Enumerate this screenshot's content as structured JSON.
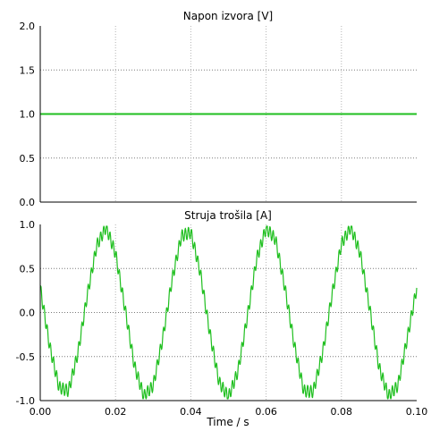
{
  "chart_data": [
    {
      "type": "line",
      "title": "Napon izvora [V]",
      "xlabel": "",
      "ylabel": "",
      "xlim": [
        0.0,
        0.1
      ],
      "ylim": [
        0.0,
        2.0
      ],
      "x_ticks": [
        0.0,
        0.02,
        0.04,
        0.06,
        0.08,
        0.1
      ],
      "y_ticks": [
        "0.0",
        "0.5",
        "1.0",
        "1.5",
        "2.0"
      ],
      "grid": "dotted",
      "color": "#1fbf1f",
      "series": [
        {
          "x": [
            0.0,
            0.1
          ],
          "y": [
            1.0,
            1.0
          ]
        }
      ]
    },
    {
      "type": "line",
      "title": "Struja trošila [A]",
      "xlabel": "Time / s",
      "ylabel": "",
      "xlim": [
        0.0,
        0.1
      ],
      "ylim": [
        -1.0,
        1.0
      ],
      "x_ticks": [
        "0.00",
        "0.02",
        "0.04",
        "0.06",
        "0.08",
        "0.10"
      ],
      "y_ticks": [
        "-1.0",
        "-0.5",
        "0.0",
        "0.5",
        "1.0"
      ],
      "grid": "dotted",
      "color": "#1fbf1f",
      "series": [
        {
          "x": [
            0.0,
            0.0025,
            0.005,
            0.0075,
            0.01,
            0.0125,
            0.015,
            0.0175,
            0.02,
            0.0225,
            0.025,
            0.0275,
            0.03,
            0.0325,
            0.035,
            0.0375,
            0.04,
            0.0425,
            0.045,
            0.0475,
            0.05,
            0.0525,
            0.055,
            0.0575,
            0.06,
            0.0625,
            0.065,
            0.0675,
            0.07,
            0.0725,
            0.075,
            0.0775,
            0.08,
            0.0825,
            0.085,
            0.0875,
            0.09,
            0.0925,
            0.095,
            0.0975,
            0.1
          ],
          "y": [
            0.28,
            -0.38,
            -0.85,
            -0.89,
            -0.46,
            0.2,
            0.76,
            0.97,
            0.67,
            0.05,
            -0.6,
            -0.95,
            -0.83,
            -0.3,
            0.37,
            0.87,
            0.91,
            0.46,
            -0.22,
            -0.79,
            -0.96,
            -0.67,
            -0.05,
            0.61,
            0.96,
            0.83,
            0.28,
            -0.37,
            -0.89,
            -0.9,
            -0.46,
            0.2,
            0.78,
            0.97,
            0.67,
            0.05,
            -0.62,
            -0.95,
            -0.83,
            -0.29,
            0.28
          ]
        }
      ]
    }
  ]
}
